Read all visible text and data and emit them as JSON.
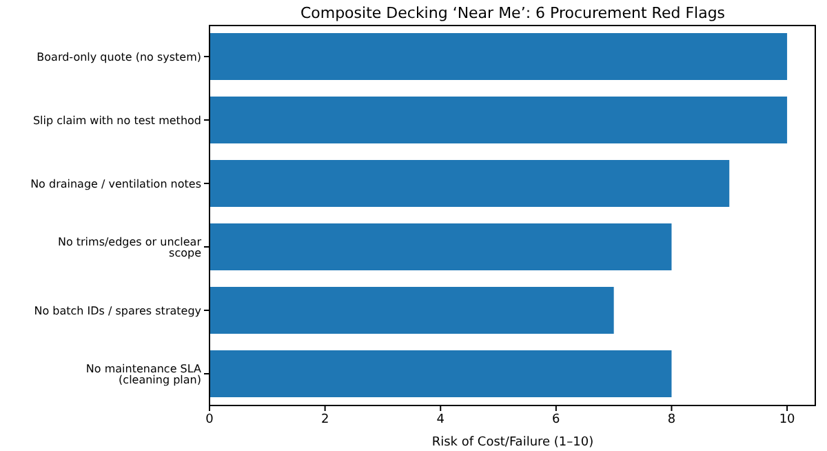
{
  "chart_data": {
    "type": "bar",
    "orientation": "horizontal",
    "title": "Composite Decking ‘Near Me’: 6 Procurement Red Flags",
    "xlabel": "Risk of Cost/Failure (1–10)",
    "categories": [
      "Board-only quote (no system)",
      "Slip claim with no test method",
      "No drainage / ventilation notes",
      "No trims/edges or unclear scope",
      "No batch IDs / spares strategy",
      "No maintenance SLA (cleaning plan)"
    ],
    "values": [
      10,
      10,
      9,
      8,
      7,
      8
    ],
    "color": "#1f77b4",
    "xlim": [
      0,
      10.5
    ],
    "xticks": [
      0,
      2,
      4,
      6,
      8,
      10
    ],
    "grid": false,
    "legend": false
  }
}
